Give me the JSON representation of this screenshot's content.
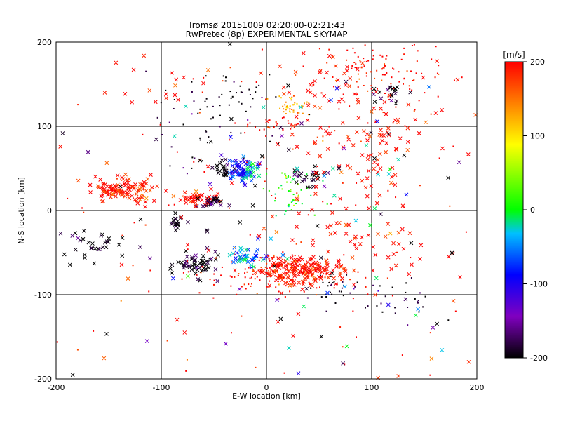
{
  "chart_data": {
    "type": "scatter",
    "title": "Tromsø 20151009 02:20:00-02:21:43",
    "subtitle": "RwPretec (8p) EXPERIMENTAL SKYMAP",
    "xlabel": "E-W location [km]",
    "ylabel": "N-S location [km]",
    "xlim": [
      -200,
      200
    ],
    "ylim": [
      -200,
      200
    ],
    "xticks": [
      "-200",
      "-100",
      "0",
      "100",
      "200"
    ],
    "yticks": [
      "-200",
      "-100",
      "0",
      "100",
      "200"
    ],
    "grid": true,
    "colorbar": {
      "label": "[m/s]",
      "range": [
        -200,
        200
      ],
      "ticks": [
        "200",
        "100",
        "0",
        "-100",
        "-200"
      ],
      "colormap": [
        "#000000",
        "#8000c0",
        "#0000ff",
        "#00c0ff",
        "#00ff00",
        "#ffff00",
        "#ff8000",
        "#ff0000"
      ]
    },
    "clusters": [
      {
        "x": -140,
        "y": 25,
        "sx": 14,
        "sy": 7,
        "v": 200,
        "n": 80,
        "m": "x"
      },
      {
        "x": -122,
        "y": 22,
        "sx": 8,
        "sy": 8,
        "v": 190,
        "n": 30,
        "m": "x"
      },
      {
        "x": -65,
        "y": 15,
        "sx": 10,
        "sy": 5,
        "v": 200,
        "n": 45,
        "m": "x"
      },
      {
        "x": -50,
        "y": 10,
        "sx": 6,
        "sy": 4,
        "v": -200,
        "n": 25,
        "m": "x"
      },
      {
        "x": -25,
        "y": 48,
        "sx": 7,
        "sy": 7,
        "v": -90,
        "n": 70,
        "m": "x"
      },
      {
        "x": -40,
        "y": 50,
        "sx": 5,
        "sy": 5,
        "v": -200,
        "n": 20,
        "m": "x"
      },
      {
        "x": -15,
        "y": 45,
        "sx": 5,
        "sy": 6,
        "v": 0,
        "n": 20,
        "m": "x"
      },
      {
        "x": 35,
        "y": -70,
        "sx": 20,
        "sy": 9,
        "v": 200,
        "n": 160,
        "m": "x"
      },
      {
        "x": 10,
        "y": -65,
        "sx": 15,
        "sy": 8,
        "v": 200,
        "n": 60,
        "m": "."
      },
      {
        "x": -65,
        "y": -65,
        "sx": 10,
        "sy": 7,
        "v": -200,
        "n": 60,
        "m": "x"
      },
      {
        "x": -85,
        "y": -15,
        "sx": 4,
        "sy": 4,
        "v": -200,
        "n": 20,
        "m": "x"
      },
      {
        "x": -165,
        "y": -45,
        "sx": 18,
        "sy": 8,
        "v": -200,
        "n": 35,
        "m": "x"
      },
      {
        "x": 25,
        "y": 125,
        "sx": 8,
        "sy": 6,
        "v": 130,
        "n": 45,
        "m": "."
      },
      {
        "x": 10,
        "y": 100,
        "sx": 12,
        "sy": 5,
        "v": 200,
        "n": 25,
        "m": "."
      },
      {
        "x": 100,
        "y": 165,
        "sx": 30,
        "sy": 25,
        "v": 200,
        "n": 120,
        "m": "."
      },
      {
        "x": 60,
        "y": 150,
        "sx": 25,
        "sy": 25,
        "v": 200,
        "n": 40,
        "m": "x"
      },
      {
        "x": 120,
        "y": 140,
        "sx": 10,
        "sy": 5,
        "v": -200,
        "n": 20,
        "m": "x"
      },
      {
        "x": -30,
        "y": 140,
        "sx": 25,
        "sy": 12,
        "v": -200,
        "n": 35,
        "m": "."
      },
      {
        "x": 25,
        "y": 20,
        "sx": 12,
        "sy": 15,
        "v": 40,
        "n": 50,
        "m": "."
      },
      {
        "x": 40,
        "y": 40,
        "sx": 10,
        "sy": 8,
        "v": -200,
        "n": 25,
        "m": "x"
      },
      {
        "x": 10,
        "y": -80,
        "sx": 40,
        "sy": 10,
        "v": 200,
        "n": 100,
        "m": "."
      },
      {
        "x": -20,
        "y": -55,
        "sx": 10,
        "sy": 6,
        "v": -40,
        "n": 40,
        "m": "x"
      },
      {
        "x": 60,
        "y": -90,
        "sx": 15,
        "sy": 10,
        "v": -200,
        "n": 30,
        "m": "."
      },
      {
        "x": 130,
        "y": -110,
        "sx": 25,
        "sy": 12,
        "v": -200,
        "n": 25,
        "m": "."
      },
      {
        "x": 80,
        "y": 70,
        "sx": 30,
        "sy": 30,
        "v": 200,
        "n": 60,
        "m": "x"
      },
      {
        "x": -60,
        "y": 100,
        "sx": 30,
        "sy": 25,
        "v": -200,
        "n": 40,
        "m": "."
      },
      {
        "x": 100,
        "y": -30,
        "sx": 50,
        "sy": 30,
        "v": 200,
        "n": 60,
        "m": "x"
      },
      {
        "x": 150,
        "y": 100,
        "sx": 30,
        "sy": 30,
        "v": 200,
        "n": 30,
        "m": "x"
      },
      {
        "x": -100,
        "y": 150,
        "sx": 30,
        "sy": 20,
        "v": 200,
        "n": 15,
        "m": "x"
      },
      {
        "x": 0,
        "y": 0,
        "sx": 130,
        "sy": 130,
        "v": 200,
        "n": 150,
        "m": "."
      },
      {
        "x": 0,
        "y": 0,
        "sx": 130,
        "sy": 130,
        "v": 200,
        "n": 60,
        "m": "x"
      },
      {
        "x": 0,
        "y": 0,
        "sx": 110,
        "sy": 110,
        "v": -200,
        "n": 50,
        "m": "x"
      },
      {
        "x": 0,
        "y": 0,
        "sx": 110,
        "sy": 110,
        "v": 0,
        "n": 30,
        "m": "x"
      },
      {
        "x": 0,
        "y": 0,
        "sx": 110,
        "sy": 110,
        "v": -100,
        "n": 20,
        "m": "x"
      }
    ]
  }
}
